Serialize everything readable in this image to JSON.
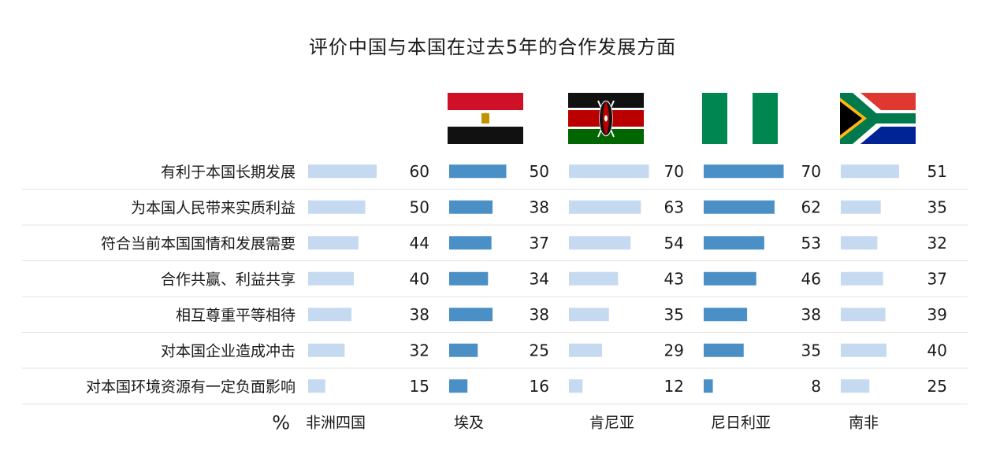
{
  "title": "评价中国与本国在过去5年的合作发展方面",
  "chart_data": {
    "type": "bar",
    "title": "评价中国与本国在过去5年的合作发展方面",
    "unit": "%",
    "categories": [
      "有利于本国长期发展",
      "为本国人民带来实质利益",
      "符合当前本国国情和发展需要",
      "合作共赢、利益共享",
      "相互尊重平等相待",
      "对本国企业造成冲击",
      "对本国环境资源有一定负面影响"
    ],
    "series": [
      {
        "name": "非洲四国",
        "values": [
          60,
          50,
          44,
          40,
          38,
          32,
          15
        ],
        "color": "#c5daf0",
        "flag": "none"
      },
      {
        "name": "埃及",
        "values": [
          50,
          38,
          37,
          34,
          38,
          25,
          16
        ],
        "color": "#4a8fc5",
        "flag": "egypt-flag-icon"
      },
      {
        "name": "肯尼亚",
        "values": [
          70,
          63,
          54,
          43,
          35,
          29,
          12
        ],
        "color": "#c5daf0",
        "flag": "kenya-flag-icon"
      },
      {
        "name": "尼日利亚",
        "values": [
          70,
          62,
          53,
          46,
          38,
          35,
          8
        ],
        "color": "#4a8fc5",
        "flag": "nigeria-flag-icon"
      },
      {
        "name": "南非",
        "values": [
          51,
          35,
          32,
          37,
          39,
          40,
          25
        ],
        "color": "#c5daf0",
        "flag": "south-africa-flag-icon"
      }
    ],
    "xlim": [
      0,
      70
    ],
    "grid": "horizontal-separators",
    "legend": "bottom"
  }
}
